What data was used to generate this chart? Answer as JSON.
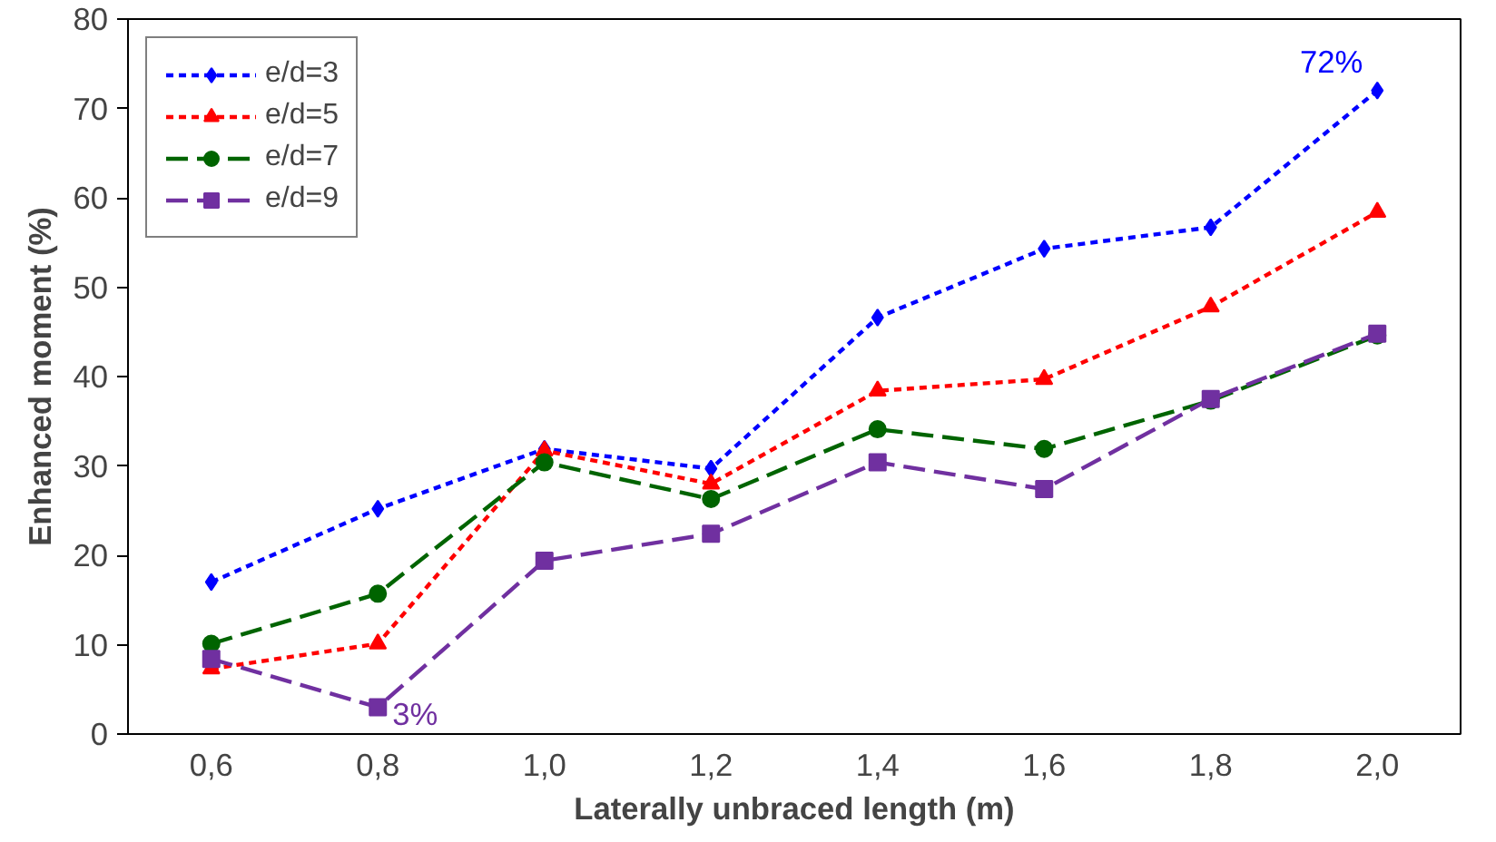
{
  "chart_data": {
    "type": "line",
    "xlabel": "Laterally unbraced length (m)",
    "ylabel": "Enhanced moment (%)",
    "categories": [
      "0,6",
      "0,8",
      "1,0",
      "1,2",
      "1,4",
      "1,6",
      "1,8",
      "2,0"
    ],
    "ylim": [
      0,
      80
    ],
    "yticks": [
      0,
      10,
      20,
      30,
      40,
      50,
      60,
      70,
      80
    ],
    "grid": false,
    "legend": "top left",
    "series": [
      {
        "name": "e/d=3",
        "color": "#0000ff",
        "marker": "diamond",
        "line_style": "dotted",
        "values": [
          17.0,
          25.2,
          31.9,
          29.7,
          46.6,
          54.3,
          56.7,
          72
        ]
      },
      {
        "name": "e/d=5",
        "color": "#ff0000",
        "marker": "triangle",
        "line_style": "dotted",
        "values": [
          7.3,
          10.1,
          31.7,
          28.0,
          38.4,
          39.7,
          47.8,
          58.4
        ]
      },
      {
        "name": "e/d=7",
        "color": "#006400",
        "marker": "circle",
        "line_style": "dashed",
        "values": [
          10.1,
          15.7,
          30.4,
          26.3,
          34.1,
          31.9,
          37.3,
          44.6
        ]
      },
      {
        "name": "e/d=9",
        "color": "#7030a0",
        "marker": "square",
        "line_style": "dashed",
        "values": [
          8.4,
          3,
          19.4,
          22.4,
          30.4,
          27.4,
          37.5,
          44.8
        ]
      }
    ],
    "annotations": [
      {
        "text": "72%",
        "x": "2,0",
        "y": 72
      },
      {
        "text": "3%",
        "x": "0,8",
        "y": 3
      }
    ]
  }
}
